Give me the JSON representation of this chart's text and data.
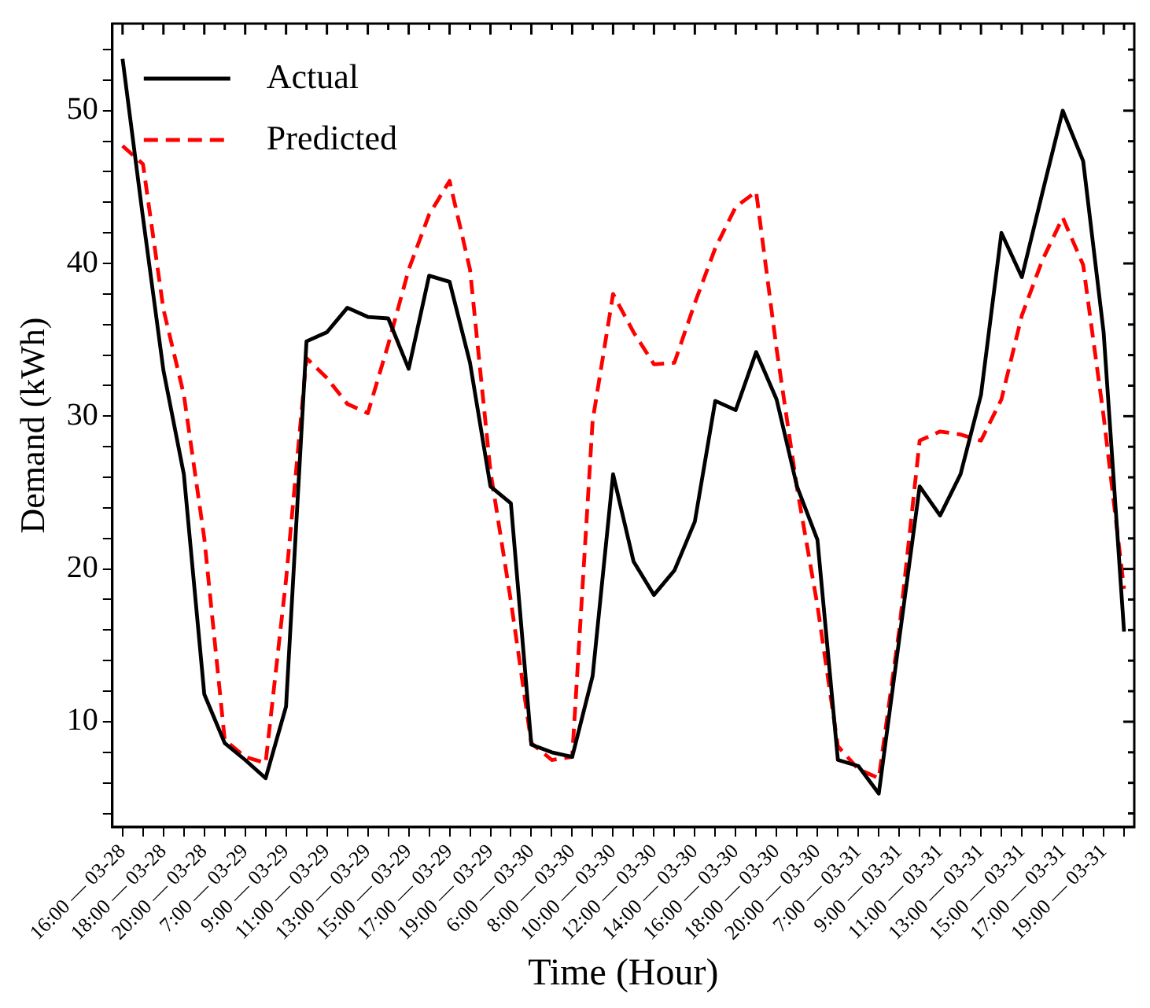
{
  "chart_data": {
    "type": "line",
    "xlabel": "Time (Hour)",
    "ylabel": "Demand (kWh)",
    "categories": [
      "16:00 — 03-28",
      null,
      "18:00 — 03-28",
      null,
      "20:00 — 03-28",
      null,
      "7:00 — 03-29",
      null,
      "9:00 — 03-29",
      null,
      "11:00 — 03-29",
      null,
      "13:00 — 03-29",
      null,
      "15:00 — 03-29",
      null,
      "17:00 — 03-29",
      null,
      "19:00 — 03-29",
      null,
      "6:00 — 03-30",
      null,
      "8:00 — 03-30",
      null,
      "10:00 — 03-30",
      null,
      "12:00 — 03-30",
      null,
      "14:00 — 03-30",
      null,
      "16:00 — 03-30",
      null,
      "18:00 — 03-30",
      null,
      "20:00 — 03-30",
      null,
      "7:00 — 03-31",
      null,
      "9:00 — 03-31",
      null,
      "11:00 — 03-31",
      null,
      "13:00 — 03-31",
      null,
      "15:00 — 03-31",
      null,
      "17:00 — 03-31",
      null,
      "19:00 — 03-31",
      null
    ],
    "series": [
      {
        "name": "Actual",
        "color": "#000000",
        "line_style": "solid",
        "values": [
          53.4,
          43,
          33.0,
          26.2,
          11.8,
          8.6,
          7.5,
          6.3,
          11.0,
          34.9,
          35.5,
          37.1,
          36.5,
          36.4,
          33.1,
          39.2,
          38.8,
          33.5,
          25.4,
          24.3,
          8.5,
          8.0,
          7.7,
          13.0,
          26.2,
          20.5,
          18.3,
          19.9,
          23.1,
          31.0,
          30.4,
          34.2,
          31.1,
          25.4,
          21.9,
          7.5,
          7.1,
          5.3,
          15.4,
          25.4,
          23.5,
          26.2,
          31.4,
          42.0,
          39.1,
          44.6,
          50.0,
          46.7,
          35.5,
          15.9
        ]
      },
      {
        "name": "Predicted",
        "color": "#ff0000",
        "line_style": "dashed",
        "values": [
          47.7,
          46.5,
          37,
          31.4,
          22.0,
          8.8,
          7.7,
          7.3,
          19.3,
          33.8,
          32.5,
          30.8,
          30.2,
          34.7,
          39.6,
          43.2,
          45.4,
          39.6,
          26.4,
          17.9,
          8.6,
          7.5,
          7.7,
          29.7,
          38.0,
          35.5,
          33.4,
          33.5,
          37.4,
          41.0,
          43.7,
          44.7,
          34.4,
          25.3,
          17.6,
          8.4,
          6.9,
          6.3,
          16.0,
          28.4,
          29.0,
          28.8,
          28.4,
          31.1,
          36.6,
          40.2,
          43.0,
          39.9,
          30.0,
          18.7
        ]
      }
    ],
    "ylim": [
      3.1,
      55.7
    ],
    "yticks": [
      {
        "value": 4,
        "label": null
      },
      {
        "value": 6,
        "label": null
      },
      {
        "value": 8,
        "label": null
      },
      10,
      {
        "value": 12,
        "label": null
      },
      {
        "value": 14,
        "label": null
      },
      {
        "value": 16,
        "label": null
      },
      {
        "value": 18,
        "label": null
      },
      20,
      {
        "value": 22,
        "label": null
      },
      {
        "value": 24,
        "label": null
      },
      {
        "value": 26,
        "label": null
      },
      {
        "value": 28,
        "label": null
      },
      30,
      {
        "value": 32,
        "label": null
      },
      {
        "value": 34,
        "label": null
      },
      {
        "value": 36,
        "label": null
      },
      {
        "value": 38,
        "label": null
      },
      40,
      {
        "value": 42,
        "label": null
      },
      {
        "value": 44,
        "label": null
      },
      {
        "value": 46,
        "label": null
      },
      {
        "value": 48,
        "label": null
      },
      50,
      {
        "value": 52,
        "label": null
      },
      {
        "value": 54,
        "label": null
      }
    ],
    "legend": "top left",
    "grid": false,
    "marker": "none"
  }
}
